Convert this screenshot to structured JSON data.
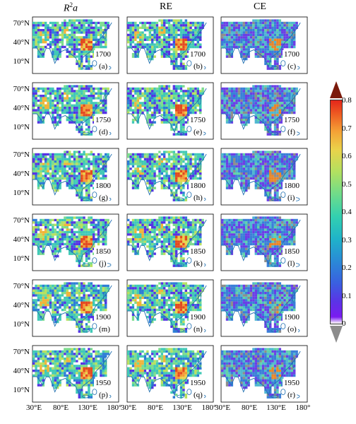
{
  "columns": [
    {
      "title_html": "R²a",
      "title_main": "R",
      "title_sup": "2",
      "title_tail": "a"
    },
    {
      "title": "RE"
    },
    {
      "title": "CE"
    }
  ],
  "rows": [
    {
      "year": "1700",
      "labels": [
        "(a)",
        "(b)",
        "(c)"
      ]
    },
    {
      "year": "1750",
      "labels": [
        "(d)",
        "(e)",
        "(f)"
      ]
    },
    {
      "year": "1800",
      "labels": [
        "(g)",
        "(h)",
        "(i)"
      ]
    },
    {
      "year": "1850",
      "labels": [
        "(j)",
        "(k)",
        "(l)"
      ]
    },
    {
      "year": "1900",
      "labels": [
        "(m)",
        "(n)",
        "(o)"
      ]
    },
    {
      "year": "1950",
      "labels": [
        "(p)",
        "(q)",
        "(r)"
      ]
    }
  ],
  "lat_labels": [
    "70°N",
    "40°N",
    "10°N"
  ],
  "lon_labels": [
    "30°E",
    "80°E",
    "130°E",
    "180°"
  ],
  "colorbar": {
    "ticks": [
      "0.8",
      "0.7",
      "0.6",
      "0.5",
      "0.4",
      "0.3",
      "0.2",
      "0.1",
      "0"
    ],
    "range": [
      0,
      0.8
    ],
    "over_color": "#7b1a0b",
    "under_color": "#8c8c8c"
  },
  "colors": {
    "coast": "#1f6fb0",
    "land_base_r2": "#3fc7b9",
    "land_base_ce": "#3a7fd8",
    "hot": "#e8441c"
  }
}
